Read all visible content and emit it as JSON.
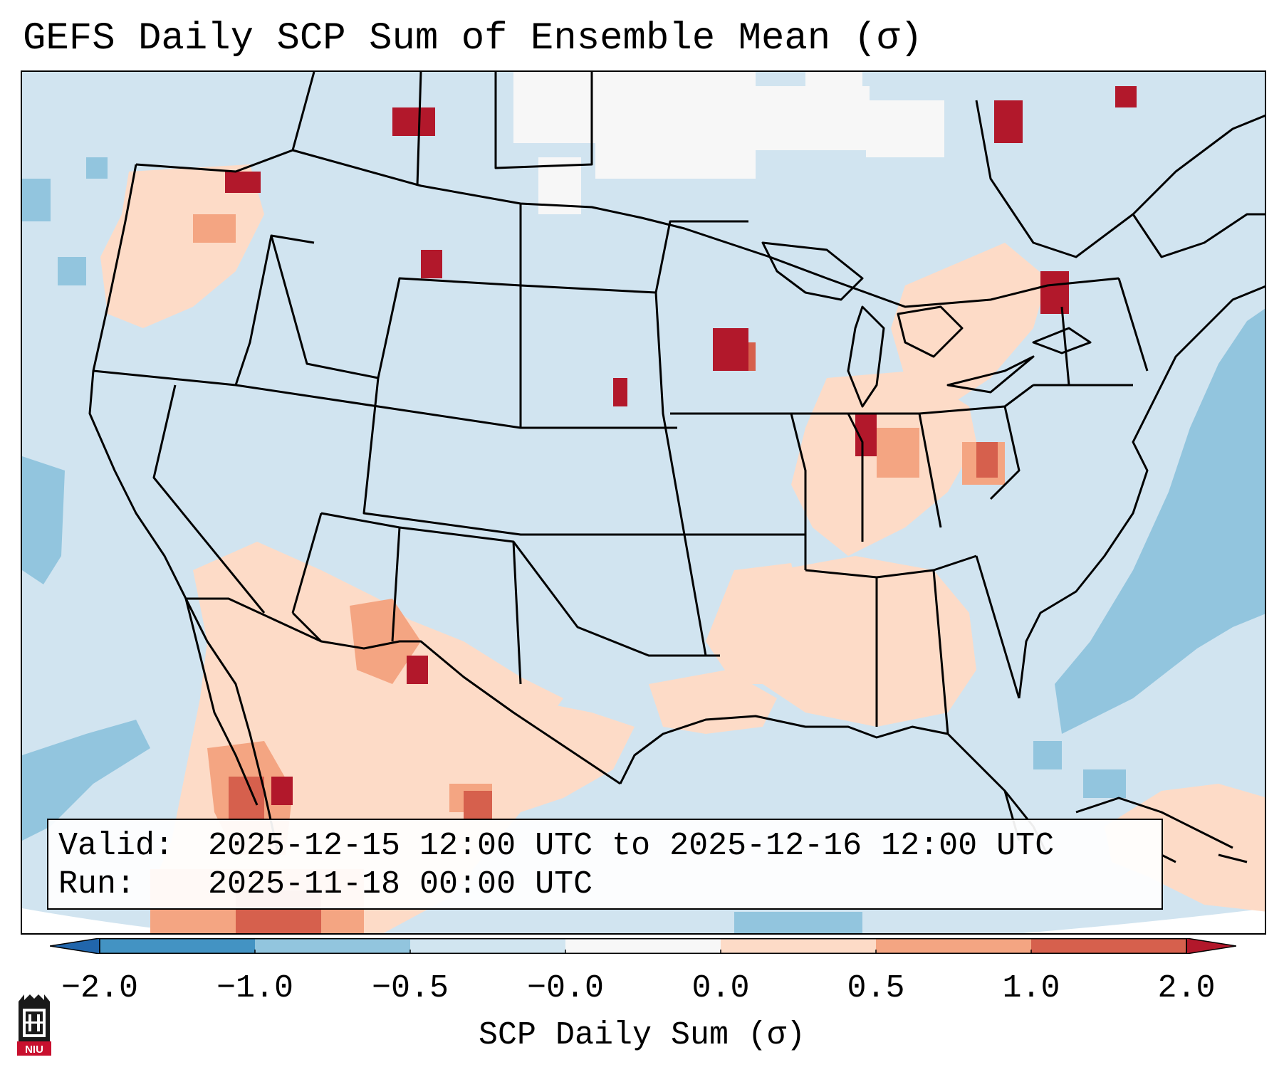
{
  "title": "GEFS Daily SCP Sum of Ensemble Mean (σ)",
  "info": {
    "valid_label": "Valid:",
    "valid_value": "2025-12-15 12:00 UTC to 2025-12-16 12:00 UTC",
    "run_label": "Run:",
    "run_value": "2025-11-18 00:00 UTC"
  },
  "colorbar": {
    "label": "SCP Daily Sum (σ)",
    "ticks": [
      "−2.0",
      "−1.0",
      "−0.5",
      "−0.0",
      "0.0",
      "0.5",
      "1.0",
      "2.0"
    ],
    "colors": [
      "#4393c3",
      "#92c5de",
      "#d1e5f0",
      "#f7f7f7",
      "#fddbc7",
      "#f4a582",
      "#d6604d"
    ],
    "under_color": "#2166ac",
    "over_color": "#b2182b"
  },
  "map": {
    "ocean_color": "#d1e4f0",
    "border_color": "#000000"
  },
  "logo": {
    "text": "NIU"
  }
}
